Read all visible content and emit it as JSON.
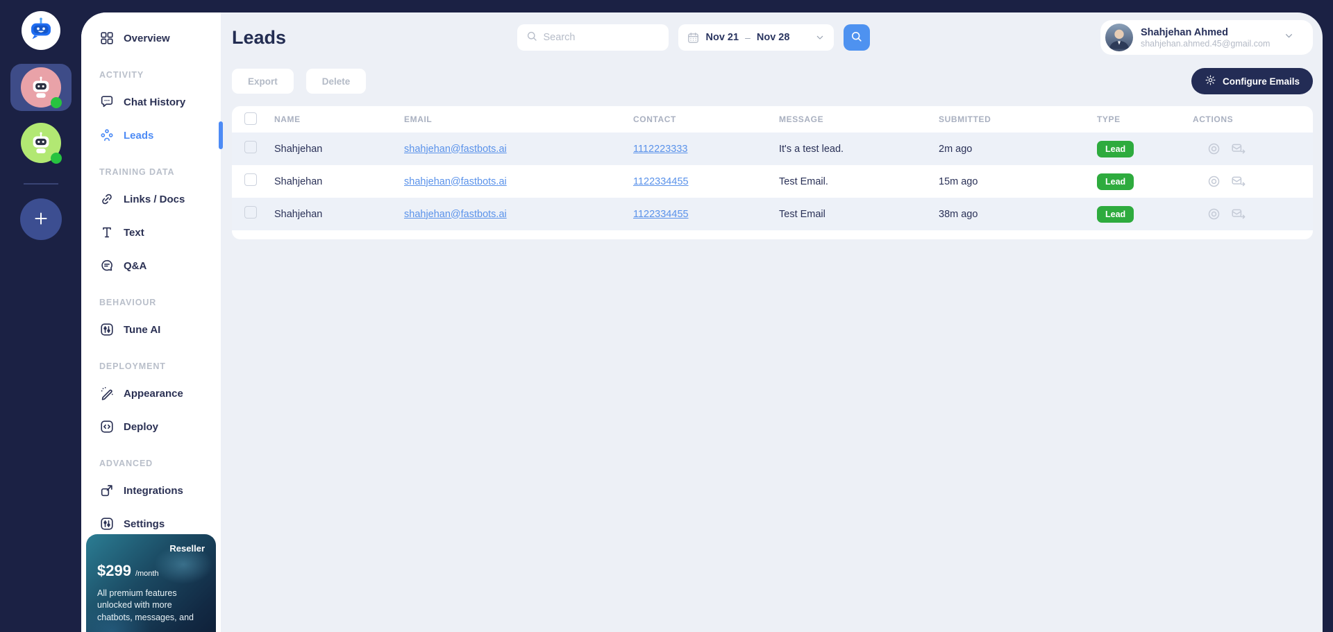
{
  "colors": {
    "rail_bg": "#1b2144",
    "panel_bg": "#edf0f6",
    "sidebar_bg": "#ffffff",
    "accent_blue": "#4d8bf5",
    "search_button": "#4e92f0",
    "link": "#5a92ea",
    "badge_green": "#2eab3e",
    "status_green": "#27c340",
    "dark_button": "#232c55",
    "row_alt": "#edf1f8",
    "selected_bot_bg": "#3e4c88"
  },
  "rail": {
    "logo_icon": "robot-chat-logo",
    "bots": [
      {
        "name": "chatbot-pink",
        "bg": "#e9a2a8",
        "selected": true
      },
      {
        "name": "chatbot-green",
        "bg": "#b2e873",
        "selected": false
      }
    ],
    "add_bot_icon": "plus-icon"
  },
  "sidebar": {
    "items": [
      {
        "type": "item",
        "label": "Overview",
        "icon": "grid"
      },
      {
        "type": "section",
        "label": "ACTIVITY"
      },
      {
        "type": "item",
        "label": "Chat History",
        "icon": "chat"
      },
      {
        "type": "item",
        "label": "Leads",
        "icon": "users",
        "active": true
      },
      {
        "type": "section",
        "label": "TRAINING DATA"
      },
      {
        "type": "item",
        "label": "Links / Docs",
        "icon": "link"
      },
      {
        "type": "item",
        "label": "Text",
        "icon": "text"
      },
      {
        "type": "item",
        "label": "Q&A",
        "icon": "qa"
      },
      {
        "type": "section",
        "label": "BEHAVIOUR"
      },
      {
        "type": "item",
        "label": "Tune AI",
        "icon": "sliders"
      },
      {
        "type": "section",
        "label": "DEPLOYMENT"
      },
      {
        "type": "item",
        "label": "Appearance",
        "icon": "wand"
      },
      {
        "type": "item",
        "label": "Deploy",
        "icon": "code"
      },
      {
        "type": "section",
        "label": "ADVANCED"
      },
      {
        "type": "item",
        "label": "Integrations",
        "icon": "external"
      },
      {
        "type": "item",
        "label": "Settings",
        "icon": "sliders"
      }
    ],
    "plan_card": {
      "badge": "Reseller",
      "price": "$299",
      "period": "/month",
      "description": "All premium features unlocked with more chatbots, messages, and"
    }
  },
  "header": {
    "title": "Leads",
    "search_placeholder": "Search",
    "date_range": {
      "start": "Nov 21",
      "separator": "–",
      "end": "Nov 28"
    },
    "profile": {
      "name": "Shahjehan Ahmed",
      "email": "shahjehan.ahmed.45@gmail.com"
    }
  },
  "toolbar": {
    "export_label": "Export",
    "delete_label": "Delete",
    "configure_emails_label": "Configure Emails"
  },
  "table": {
    "headers": [
      "NAME",
      "EMAIL",
      "CONTACT",
      "MESSAGE",
      "SUBMITTED",
      "TYPE",
      "ACTIONS"
    ],
    "rows": [
      {
        "name": "Shahjehan",
        "email": "shahjehan@fastbots.ai",
        "contact": "1112223333",
        "message": "It's a test lead.",
        "submitted": "2m ago",
        "type": "Lead"
      },
      {
        "name": "Shahjehan",
        "email": "shahjehan@fastbots.ai",
        "contact": "1122334455",
        "message": "Test Email.",
        "submitted": "15m ago",
        "type": "Lead"
      },
      {
        "name": "Shahjehan",
        "email": "shahjehan@fastbots.ai",
        "contact": "1122334455",
        "message": "Test Email",
        "submitted": "38m ago",
        "type": "Lead"
      }
    ],
    "row_action_icons": [
      "view-icon",
      "mail-forward-icon"
    ]
  }
}
